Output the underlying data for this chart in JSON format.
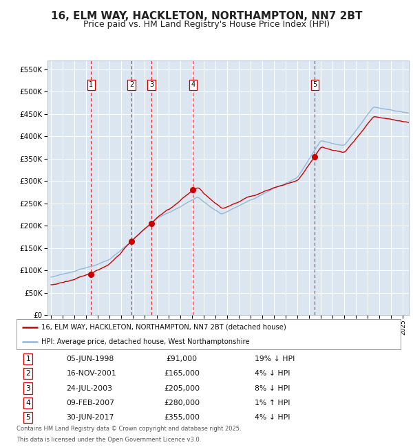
{
  "title": "16, ELM WAY, HACKLETON, NORTHAMPTON, NN7 2BT",
  "subtitle": "Price paid vs. HM Land Registry's House Price Index (HPI)",
  "title_fontsize": 11,
  "subtitle_fontsize": 9,
  "plot_bg_color": "#dce6f1",
  "grid_color": "#ffffff",
  "hpi_color": "#92b8d8",
  "price_color": "#cc0000",
  "dashed_color": "#cc0000",
  "transactions": [
    {
      "label": "1",
      "date_x": 1998.42,
      "price": 91000,
      "date_str": "05-JUN-1998",
      "hpi_pct": "19%",
      "hpi_dir": "↓"
    },
    {
      "label": "2",
      "date_x": 2001.87,
      "price": 165000,
      "date_str": "16-NOV-2001",
      "hpi_pct": "4%",
      "hpi_dir": "↓"
    },
    {
      "label": "3",
      "date_x": 2003.56,
      "price": 205000,
      "date_str": "24-JUL-2003",
      "hpi_pct": "8%",
      "hpi_dir": "↓"
    },
    {
      "label": "4",
      "date_x": 2007.1,
      "price": 280000,
      "date_str": "09-FEB-2007",
      "hpi_pct": "1%",
      "hpi_dir": "↑"
    },
    {
      "label": "5",
      "date_x": 2017.49,
      "price": 355000,
      "date_str": "30-JUN-2017",
      "hpi_pct": "4%",
      "hpi_dir": "↓"
    }
  ],
  "ylim": [
    0,
    570000
  ],
  "xlim": [
    1994.7,
    2025.5
  ],
  "yticks": [
    0,
    50000,
    100000,
    150000,
    200000,
    250000,
    300000,
    350000,
    400000,
    450000,
    500000,
    550000
  ],
  "footer_line1": "Contains HM Land Registry data © Crown copyright and database right 2025.",
  "footer_line2": "This data is licensed under the Open Government Licence v3.0.",
  "legend_label_price": "16, ELM WAY, HACKLETON, NORTHAMPTON, NN7 2BT (detached house)",
  "legend_label_hpi": "HPI: Average price, detached house, West Northamptonshire"
}
